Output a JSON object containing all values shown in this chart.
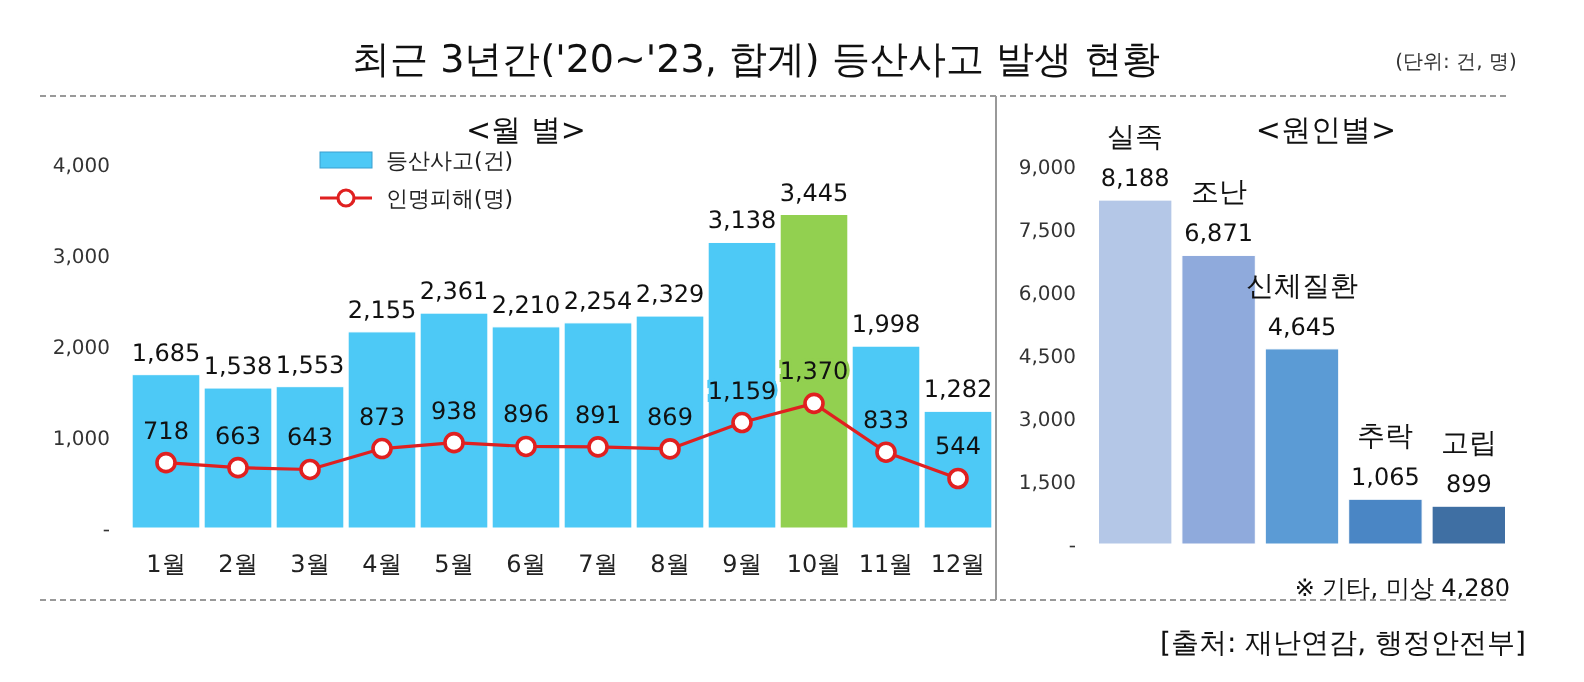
{
  "chart_data": [
    {
      "type": "bar",
      "title": "최근 3년간('20~'23, 합계) 등산사고 발생 현황",
      "subtitle": "<월 별>",
      "annotations": [
        "(단위: 건, 명)"
      ],
      "categories": [
        "1월",
        "2월",
        "3월",
        "4월",
        "5월",
        "6월",
        "7월",
        "8월",
        "9월",
        "10월",
        "11월",
        "12월"
      ],
      "series": [
        {
          "name": "등산사고(건)",
          "type": "bar",
          "color": "#4dc9f6",
          "colors": [
            "#4dc9f6",
            "#4dc9f6",
            "#4dc9f6",
            "#4dc9f6",
            "#4dc9f6",
            "#4dc9f6",
            "#4dc9f6",
            "#4dc9f6",
            "#4dc9f6",
            "#92d050",
            "#4dc9f6",
            "#4dc9f6"
          ],
          "values": [
            1685,
            1538,
            1553,
            2155,
            2361,
            2210,
            2254,
            2329,
            3138,
            3445,
            1998,
            1282
          ],
          "value_labels": [
            "1,685",
            "1,538",
            "1,553",
            "2,155",
            "2,361",
            "2,210",
            "2,254",
            "2,329",
            "3,138",
            "3,445",
            "1,998",
            "1,282"
          ]
        },
        {
          "name": "인명피해(명)",
          "type": "line",
          "color": "#e02020",
          "marker": "circle",
          "values": [
            718,
            663,
            643,
            873,
            938,
            896,
            891,
            869,
            1159,
            1370,
            833,
            544
          ],
          "value_labels": [
            "718",
            "663",
            "643",
            "873",
            "938",
            "896",
            "891",
            "869",
            "1,159",
            "1,370",
            "833",
            "544"
          ]
        }
      ],
      "ylim": [
        0,
        4000
      ],
      "yticks": [
        {
          "value": 0,
          "label": "-"
        },
        {
          "value": 1000,
          "label": "1,000"
        },
        {
          "value": 2000,
          "label": "2,000"
        },
        {
          "value": 3000,
          "label": "3,000"
        },
        {
          "value": 4000,
          "label": "4,000"
        }
      ],
      "legend": "top left",
      "grid": false,
      "tick_labels": "xy"
    },
    {
      "type": "bar",
      "title": "<원인별>",
      "annotations": [
        "※ 기타, 미상 4,280",
        "[출처: 재난연감, 행정안전부]"
      ],
      "categories": [
        "실족",
        "조난",
        "신체질환",
        "추락",
        "고립"
      ],
      "values": [
        8188,
        6871,
        4645,
        1065,
        899
      ],
      "value_labels": [
        "8,188",
        "6,871",
        "4,645",
        "1,065",
        "899"
      ],
      "colors": [
        "#b4c7e7",
        "#8faadc",
        "#5b9bd5",
        "#4a86c5",
        "#3f6fa3"
      ],
      "ylim": [
        0,
        9000
      ],
      "yticks": [
        {
          "value": 0,
          "label": "-"
        },
        {
          "value": 1500,
          "label": "1,500"
        },
        {
          "value": 3000,
          "label": "3,000"
        },
        {
          "value": 4500,
          "label": "4,500"
        },
        {
          "value": 6000,
          "label": "6,000"
        },
        {
          "value": 7500,
          "label": "7,500"
        },
        {
          "value": 9000,
          "label": "9,000"
        }
      ],
      "grid": false
    }
  ]
}
